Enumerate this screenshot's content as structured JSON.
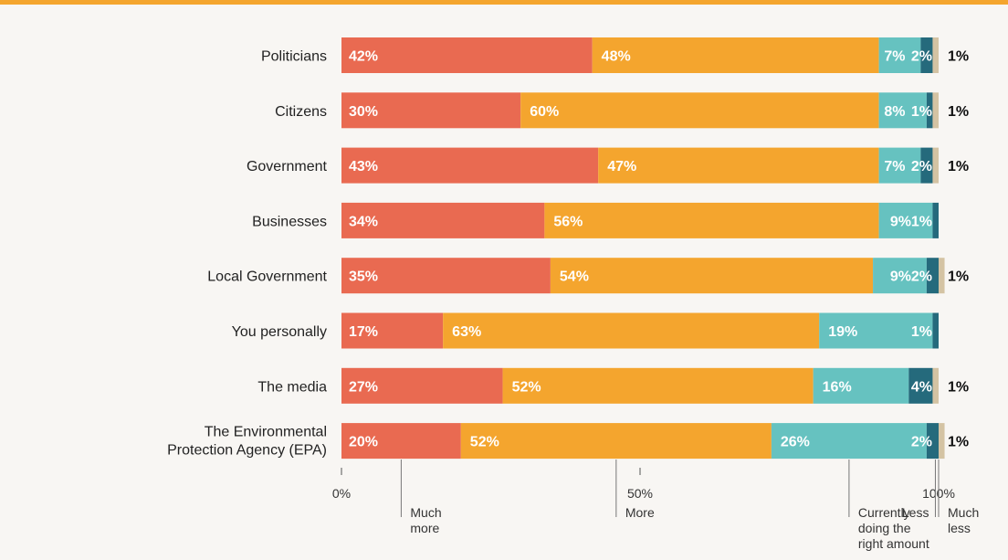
{
  "chart_data": {
    "type": "bar",
    "orientation": "horizontal",
    "stacked": true,
    "categories": [
      "Politicians",
      "Citizens",
      "Government",
      "Businesses",
      "Local Government",
      "You personally",
      "The media",
      "The Environmental Protection Agency (EPA)"
    ],
    "series": [
      {
        "name": "Much more",
        "color": "#e96a51",
        "values": [
          42,
          30,
          43,
          34,
          35,
          17,
          27,
          20
        ],
        "labels": [
          "42%",
          "30%",
          "43%",
          "34%",
          "35%",
          "17%",
          "27%",
          "20%"
        ]
      },
      {
        "name": "More",
        "color": "#f4a52e",
        "values": [
          48,
          60,
          47,
          56,
          54,
          63,
          52,
          52
        ],
        "labels": [
          "48%",
          "60%",
          "47%",
          "56%",
          "54%",
          "63%",
          "52%",
          "52%"
        ]
      },
      {
        "name": "Currently doing the right amount",
        "color": "#66c2c0",
        "values": [
          7,
          8,
          7,
          9,
          9,
          19,
          16,
          26
        ],
        "labels": [
          "7%",
          "8%",
          "7%",
          "9%",
          "9%",
          "19%",
          "16%",
          "26%"
        ]
      },
      {
        "name": "Less",
        "color": "#256a7c",
        "values": [
          2,
          1,
          2,
          1,
          2,
          1,
          4,
          2
        ],
        "labels": [
          "2%",
          "1%",
          "2%",
          "1%",
          "2%",
          "1%",
          "4%",
          "2%"
        ]
      },
      {
        "name": "Much less",
        "color": "#d4c3a3",
        "values": [
          1,
          1,
          1,
          0,
          1,
          0,
          1,
          1
        ],
        "labels": [
          "1%",
          "1%",
          "1%",
          "",
          "1%",
          "",
          "1%",
          "1%"
        ]
      }
    ],
    "xlim": [
      0,
      100
    ],
    "x_ticks": [
      0,
      50,
      100
    ],
    "x_tick_labels": [
      "0%",
      "50%",
      "100%"
    ],
    "legend_placement": "bottom",
    "accent_color": "#f4a52e",
    "background": "#f8f6f3"
  }
}
